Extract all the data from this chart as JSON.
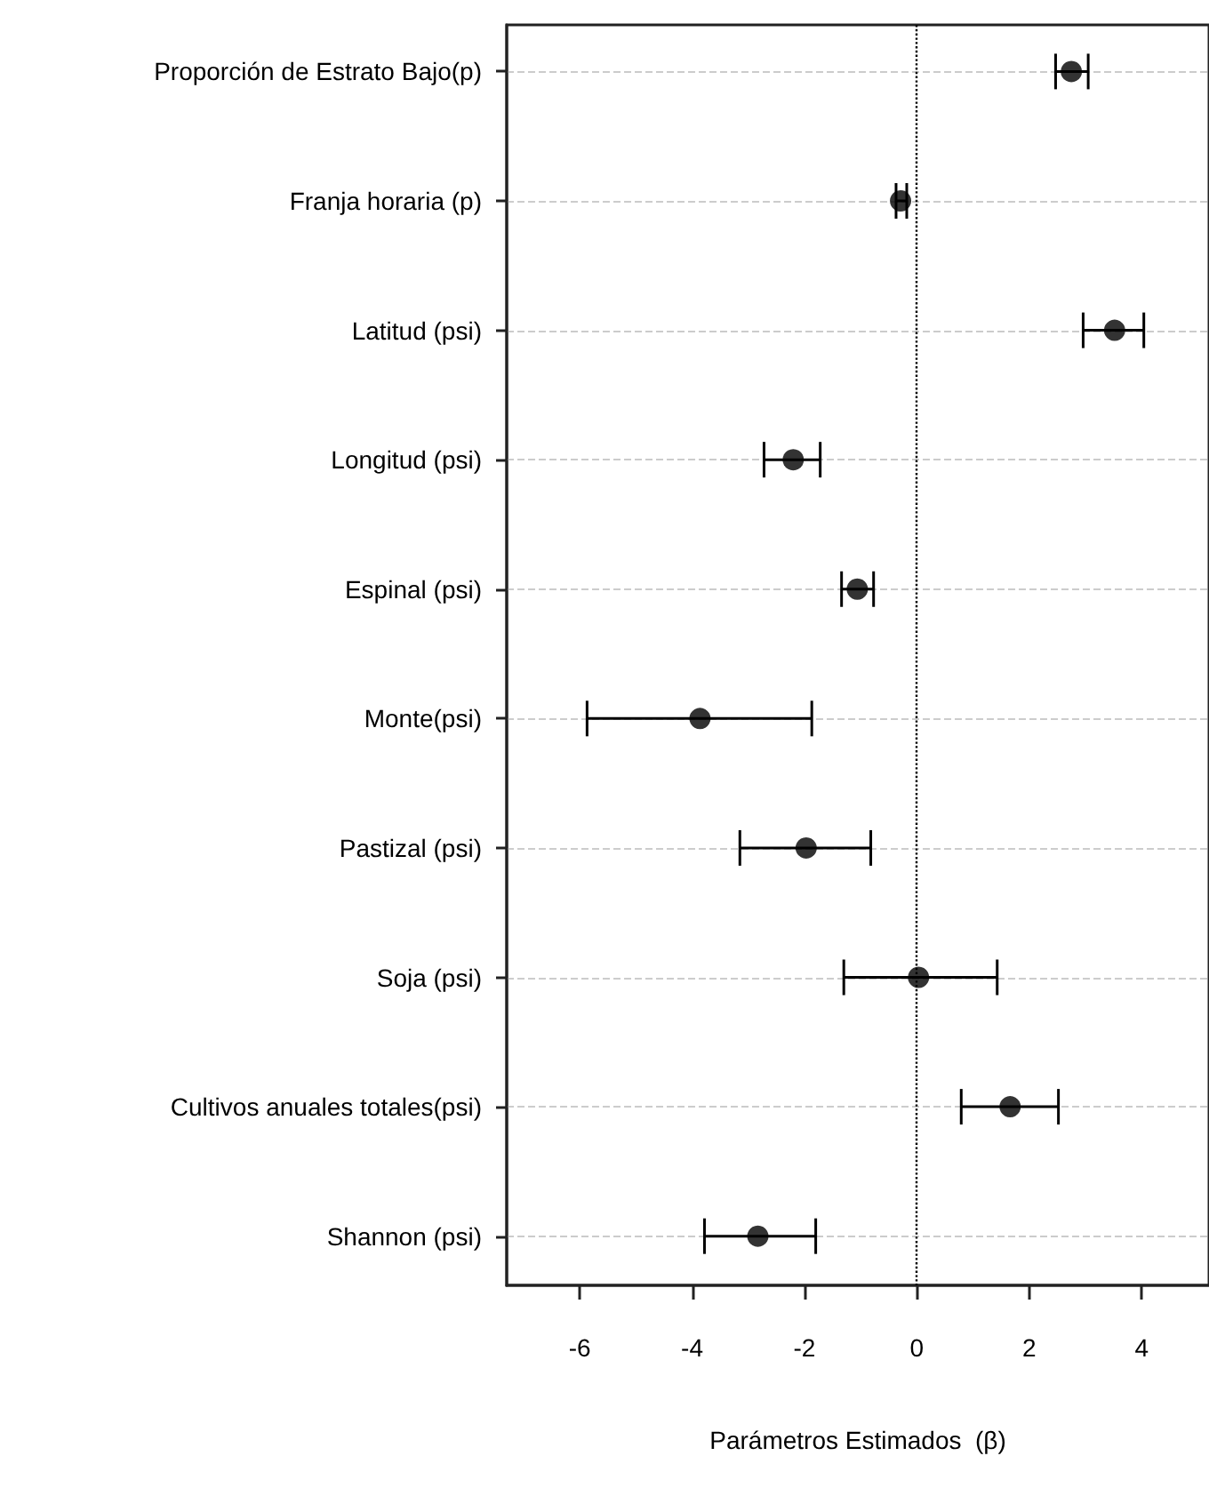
{
  "chart_data": {
    "type": "scatter",
    "orientation": "horizontal",
    "xlabel": "Parámetros Estimados  (β)",
    "categories": [
      "Proporción de Estrato Bajo(p)",
      "Franja horaria (p)",
      "Latitud (psi)",
      "Longitud (psi)",
      "Espinal (psi)",
      "Monte(psi)",
      "Pastizal (psi)",
      "Soja (psi)",
      "Cultivos anuales totales(psi)",
      "Shannon (psi)"
    ],
    "values": [
      2.75,
      -0.29,
      3.52,
      -2.2,
      -1.06,
      -3.86,
      -1.97,
      0.03,
      1.66,
      -2.83
    ],
    "errors": [
      [
        2.47,
        3.05
      ],
      [
        -0.37,
        -0.18
      ],
      [
        2.96,
        4.04
      ],
      [
        -2.72,
        -1.72
      ],
      [
        -1.34,
        -0.77
      ],
      [
        -5.87,
        -1.87
      ],
      [
        -3.15,
        -0.82
      ],
      [
        -1.3,
        1.43
      ],
      [
        0.79,
        2.52
      ],
      [
        -3.78,
        -1.8
      ]
    ],
    "color": "#000000",
    "marker": "circle",
    "xlim": [
      -7.3,
      5.2
    ],
    "xticks": [
      -6,
      -4,
      -2,
      0,
      2,
      4
    ],
    "grid": "y",
    "ref_lines": [
      {
        "axis": "x",
        "value": 0,
        "line_style": "dotted",
        "color": "#000000"
      }
    ]
  }
}
